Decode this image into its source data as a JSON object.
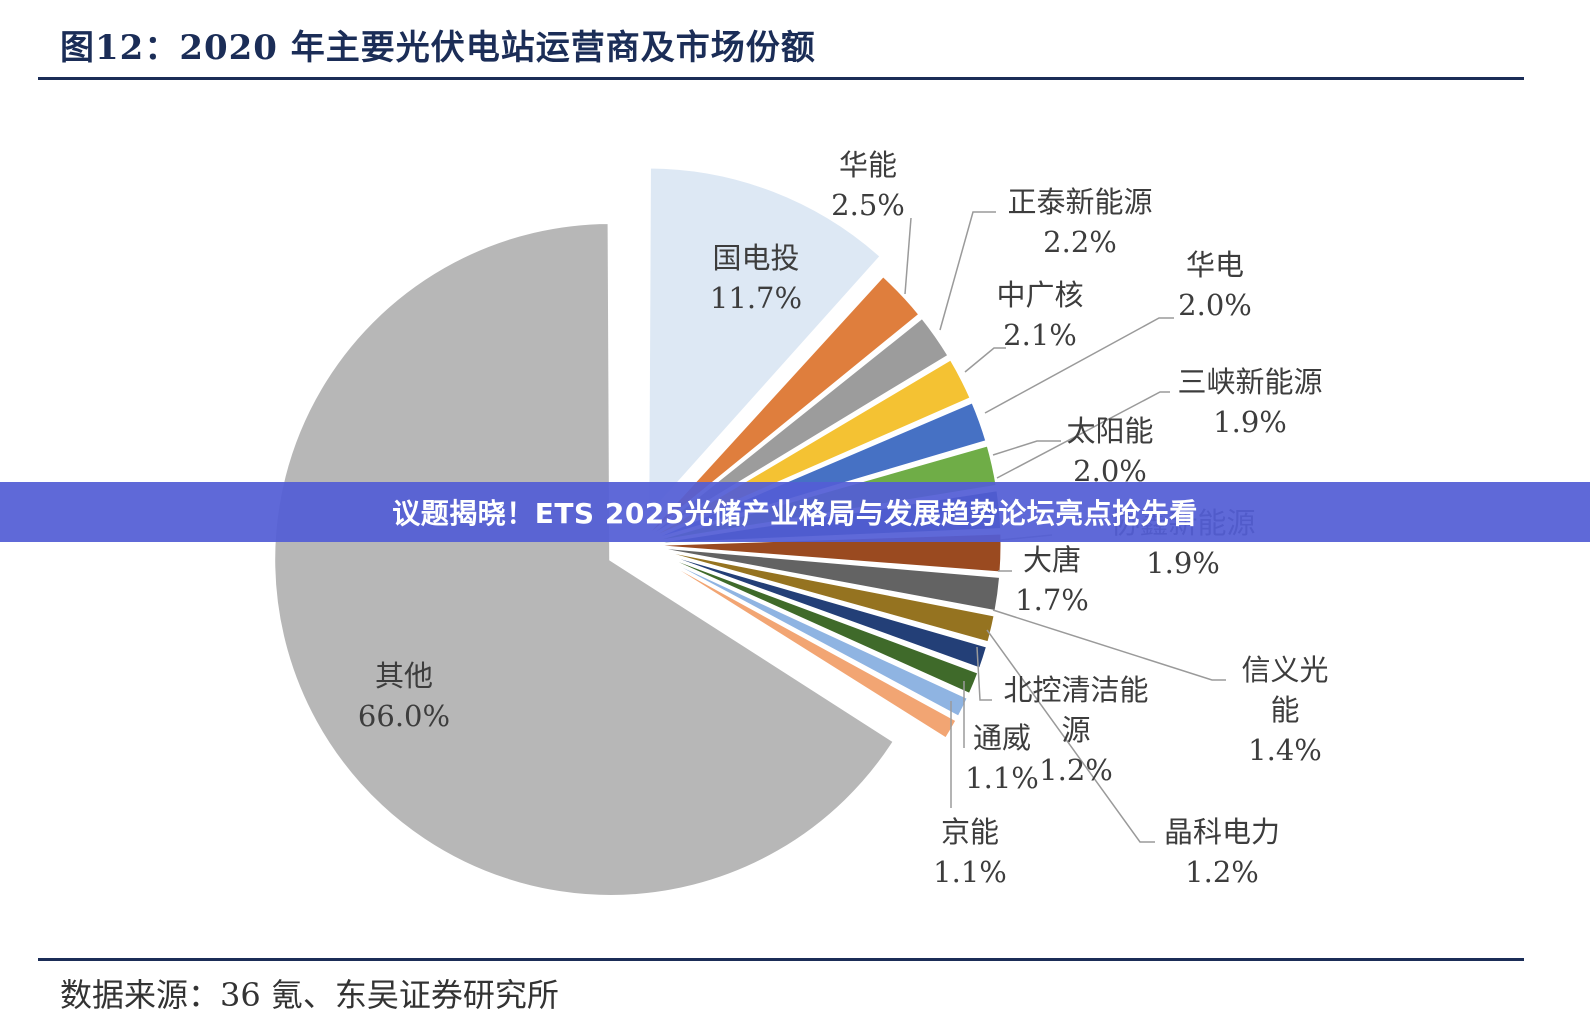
{
  "header": {
    "title": "图12：2020 年主要光伏电站运营商及市场份额"
  },
  "footer": {
    "source": "数据来源：36 氪、东吴证券研究所"
  },
  "overlay": {
    "headline": "议题揭晓！ETS 2025光储产业格局与发展趋势论坛亮点抢先看"
  },
  "colors": {
    "rule": "#1b2d57",
    "banner": "#535ed5"
  },
  "chart_data": {
    "type": "pie",
    "title": "2020 年主要光伏电站运营商及市场份额",
    "unit": "%",
    "legend": "none",
    "slices": [
      {
        "name": "国电投",
        "value": 11.7,
        "value_label": "11.7%",
        "color": "#dde8f4",
        "exploded": true
      },
      {
        "name": "华能",
        "value": 2.5,
        "value_label": "2.5%",
        "color": "#df7e3d",
        "exploded": false
      },
      {
        "name": "正泰新能源",
        "value": 2.2,
        "value_label": "2.2%",
        "color": "#9c9c9c",
        "exploded": false
      },
      {
        "name": "中广核",
        "value": 2.1,
        "value_label": "2.1%",
        "color": "#f4c233",
        "exploded": false
      },
      {
        "name": "华电",
        "value": 2.0,
        "value_label": "2.0%",
        "color": "#4671c4",
        "exploded": false
      },
      {
        "name": "太阳能",
        "value": 2.0,
        "value_label": "2.0%",
        "color": "#6fad47",
        "exploded": false
      },
      {
        "name": "三峡新能源",
        "value": 1.9,
        "value_label": "1.9%",
        "color": "#25487a",
        "exploded": false
      },
      {
        "name": "协鑫新能源",
        "value": 1.9,
        "value_label": "1.9%",
        "color": "#9a4a20",
        "exploded": false
      },
      {
        "name": "大唐",
        "value": 1.7,
        "value_label": "1.7%",
        "color": "#636363",
        "exploded": false
      },
      {
        "name": "信义光能",
        "value": 1.4,
        "value_label": "1.4%",
        "color": "#957320",
        "exploded": false
      },
      {
        "name": "晶科电力",
        "value": 1.2,
        "value_label": "1.2%",
        "color": "#233f77",
        "exploded": false
      },
      {
        "name": "北控清洁能源",
        "value": 1.2,
        "value_label": "1.2%",
        "color": "#3f6a2a",
        "exploded": false
      },
      {
        "name": "通威",
        "value": 1.1,
        "value_label": "1.1%",
        "color": "#8fb4e2",
        "exploded": false
      },
      {
        "name": "京能",
        "value": 1.1,
        "value_label": "1.1%",
        "color": "#f2a573",
        "exploded": false
      },
      {
        "name": "其他",
        "value": 66.0,
        "value_label": "66.0%",
        "color": "#b7b7b7",
        "exploded": true
      }
    ]
  }
}
